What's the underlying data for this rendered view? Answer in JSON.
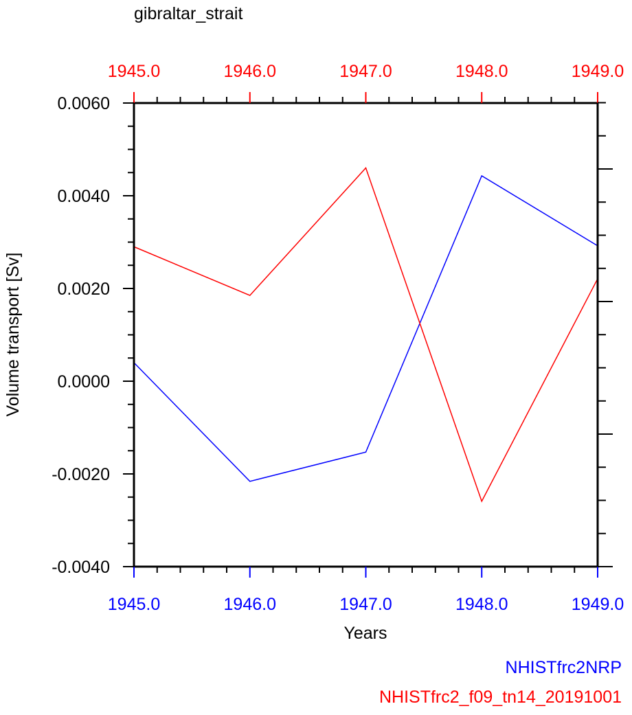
{
  "chart_data": {
    "type": "line",
    "title": "gibraltar_strait",
    "xlabel": "Years",
    "ylabel": "Volume transport [Sv]",
    "xlim": [
      1945,
      1949
    ],
    "ylim": [
      -0.004,
      0.006
    ],
    "x": [
      1945,
      1946,
      1947,
      1948,
      1949
    ],
    "x_tick_labels": [
      "1945.0",
      "1946.0",
      "1947.0",
      "1948.0",
      "1949.0"
    ],
    "y_ticks": [
      0.006,
      0.004,
      0.002,
      0.0,
      -0.002,
      -0.004
    ],
    "y_tick_labels": [
      "0.0060",
      "0.0040",
      "0.0020",
      "0.0000",
      "-0.0020",
      "-0.0040"
    ],
    "grid": false,
    "legend_placement": "bottom-right",
    "series": [
      {
        "name": "NHISTfrc2NRP",
        "color": "#0000ff",
        "values": [
          0.0004,
          -0.00216,
          -0.00153,
          0.00443,
          0.00292
        ]
      },
      {
        "name": "NHISTfrc2_f09_tn14_20191001",
        "color": "#ff0000",
        "values": [
          0.0029,
          0.00185,
          0.0046,
          -0.00259,
          0.00221
        ]
      }
    ]
  }
}
